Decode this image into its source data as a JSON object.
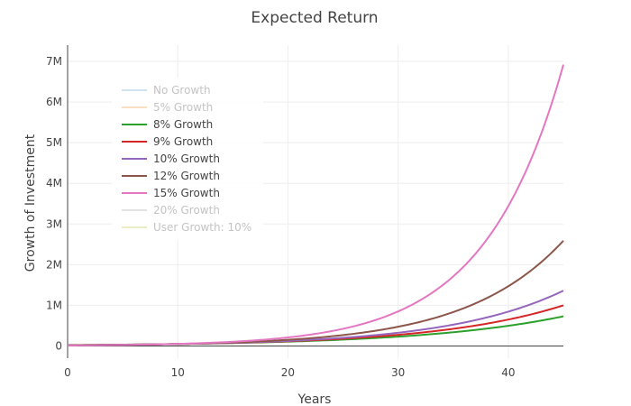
{
  "chart_data": {
    "type": "line",
    "title": "Expected Return",
    "xlabel": "Years",
    "ylabel": "Growth of Investment",
    "xlim": [
      0,
      45
    ],
    "ylim": [
      -300000,
      7400000
    ],
    "x_ticks": [
      0,
      10,
      20,
      30,
      40
    ],
    "y_ticks": [
      0,
      1000000,
      2000000,
      3000000,
      4000000,
      5000000,
      6000000,
      7000000
    ],
    "x_tick_labels": [
      "0",
      "10",
      "20",
      "30",
      "40"
    ],
    "y_tick_labels": [
      "0",
      "1M",
      "2M",
      "3M",
      "4M",
      "5M",
      "6M",
      "7M"
    ],
    "grid": true,
    "legend_position": "top-left",
    "series": [
      {
        "name": "No Growth",
        "rate": 0.0,
        "color": "#9ecae1",
        "visible": false
      },
      {
        "name": "5% Growth",
        "rate": 0.05,
        "color": "#fdbe85",
        "visible": false
      },
      {
        "name": "8% Growth",
        "rate": 0.08,
        "color": "#2ca02c",
        "visible": true
      },
      {
        "name": "9% Growth",
        "rate": 0.09,
        "color": "#d62728",
        "visible": true
      },
      {
        "name": "10% Growth",
        "rate": 0.1,
        "color": "#9467bd",
        "visible": true
      },
      {
        "name": "12% Growth",
        "rate": 0.12,
        "color": "#8c564b",
        "visible": true
      },
      {
        "name": "15% Growth",
        "rate": 0.15,
        "color": "#e377c2",
        "visible": true
      },
      {
        "name": "20% Growth",
        "rate": 0.2,
        "color": "#c7c7c7",
        "visible": false
      },
      {
        "name": "User Growth: 10%",
        "rate": 0.1,
        "color": "#dbdb8d",
        "visible": false
      }
    ],
    "end_values": {
      "8% Growth": 730000,
      "9% Growth": 1000000,
      "10% Growth": 1360000,
      "12% Growth": 2590000,
      "15% Growth": 6920000
    }
  }
}
